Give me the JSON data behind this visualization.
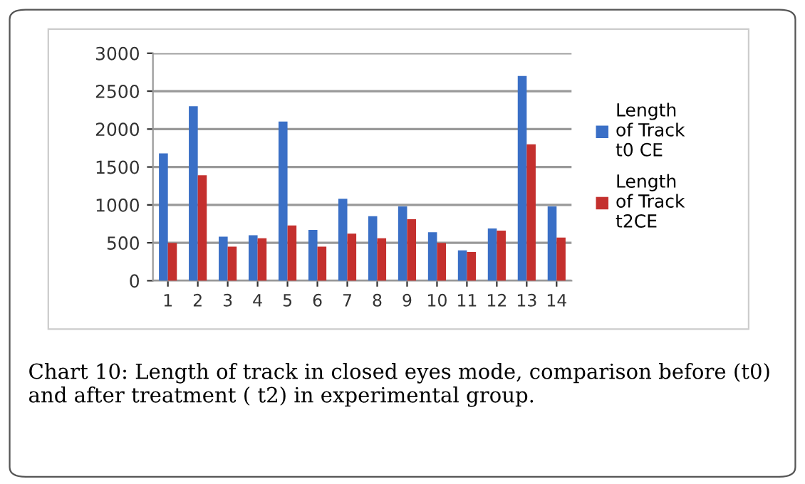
{
  "chart_data": {
    "type": "bar",
    "categories": [
      "1",
      "2",
      "3",
      "4",
      "5",
      "6",
      "7",
      "8",
      "9",
      "10",
      "11",
      "12",
      "13",
      "14"
    ],
    "series": [
      {
        "name": "Length of Track t0 CE",
        "color": "#3a6fc6",
        "values": [
          1680,
          2300,
          580,
          600,
          2100,
          670,
          1080,
          850,
          980,
          640,
          400,
          690,
          2700,
          980
        ]
      },
      {
        "name": "Length of Track t2CE",
        "color": "#c4302e",
        "values": [
          500,
          1390,
          450,
          560,
          730,
          450,
          620,
          560,
          810,
          500,
          380,
          660,
          1800,
          570
        ]
      }
    ],
    "ylim": [
      0,
      3000
    ],
    "yticks": [
      0,
      500,
      1000,
      1500,
      2000,
      2500,
      3000
    ],
    "grid": "y",
    "legend": "right",
    "annotations": [
      "Chart 10: Length of track in closed eyes mode, comparison before (t0) and after treatment ( t2) in experimental group."
    ]
  }
}
